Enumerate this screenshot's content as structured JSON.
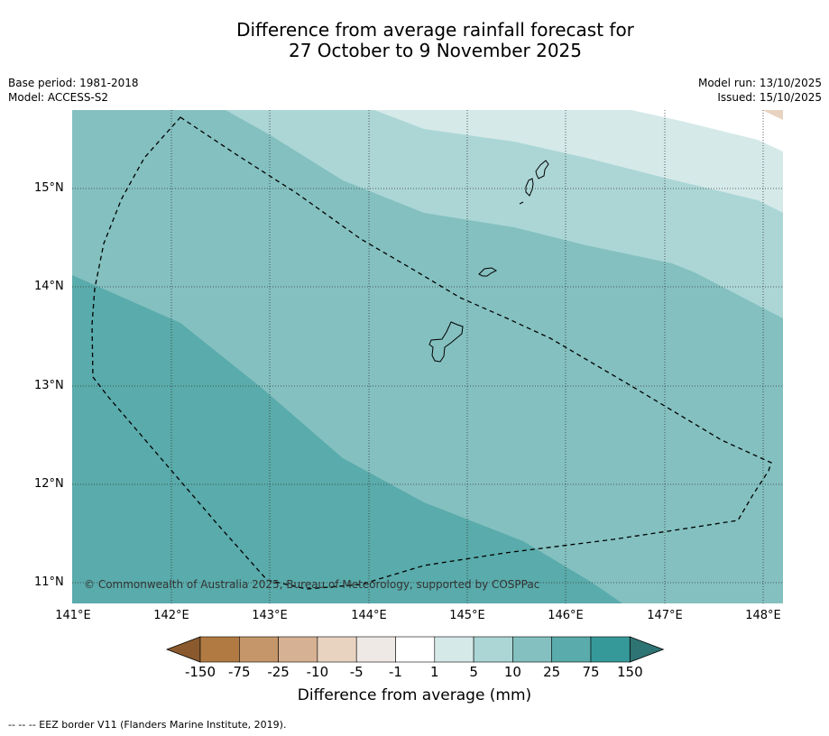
{
  "title": {
    "line1": "Difference from average rainfall forecast for",
    "line2": "27 October to 9 November 2025"
  },
  "meta_left": {
    "base_period": "Base period: 1981-2018",
    "model": "Model: ACCESS-S2"
  },
  "meta_right": {
    "model_run": "Model run: 13/10/2025",
    "issued": "Issued: 15/10/2025"
  },
  "map": {
    "lat_ticks": [
      "15°N",
      "14°N",
      "13°N",
      "12°N",
      "11°N"
    ],
    "lon_ticks": [
      "141°E",
      "142°E",
      "143°E",
      "144°E",
      "145°E",
      "146°E",
      "147°E",
      "148°E"
    ],
    "copyright": "© Commonwealth of Australia 2025, Bureau of Meteorology, supported by COSPPac",
    "legend_line": "--  --  -- EEZ border V11 (Flanders Marine Institute, 2019)."
  },
  "colorbar": {
    "labels": [
      "-150",
      "-75",
      "-25",
      "-10",
      "-5",
      "-1",
      "1",
      "5",
      "10",
      "25",
      "75",
      "150"
    ],
    "colors": [
      "#8a5a2e",
      "#b07a42",
      "#c49669",
      "#d6b193",
      "#e8d3c1",
      "#efe9e6",
      "#ffffff",
      "#d5e9e9",
      "#acd6d6",
      "#84c0c0",
      "#5aabab",
      "#359999",
      "#2f7474"
    ],
    "title": "Difference from average (mm)"
  }
}
